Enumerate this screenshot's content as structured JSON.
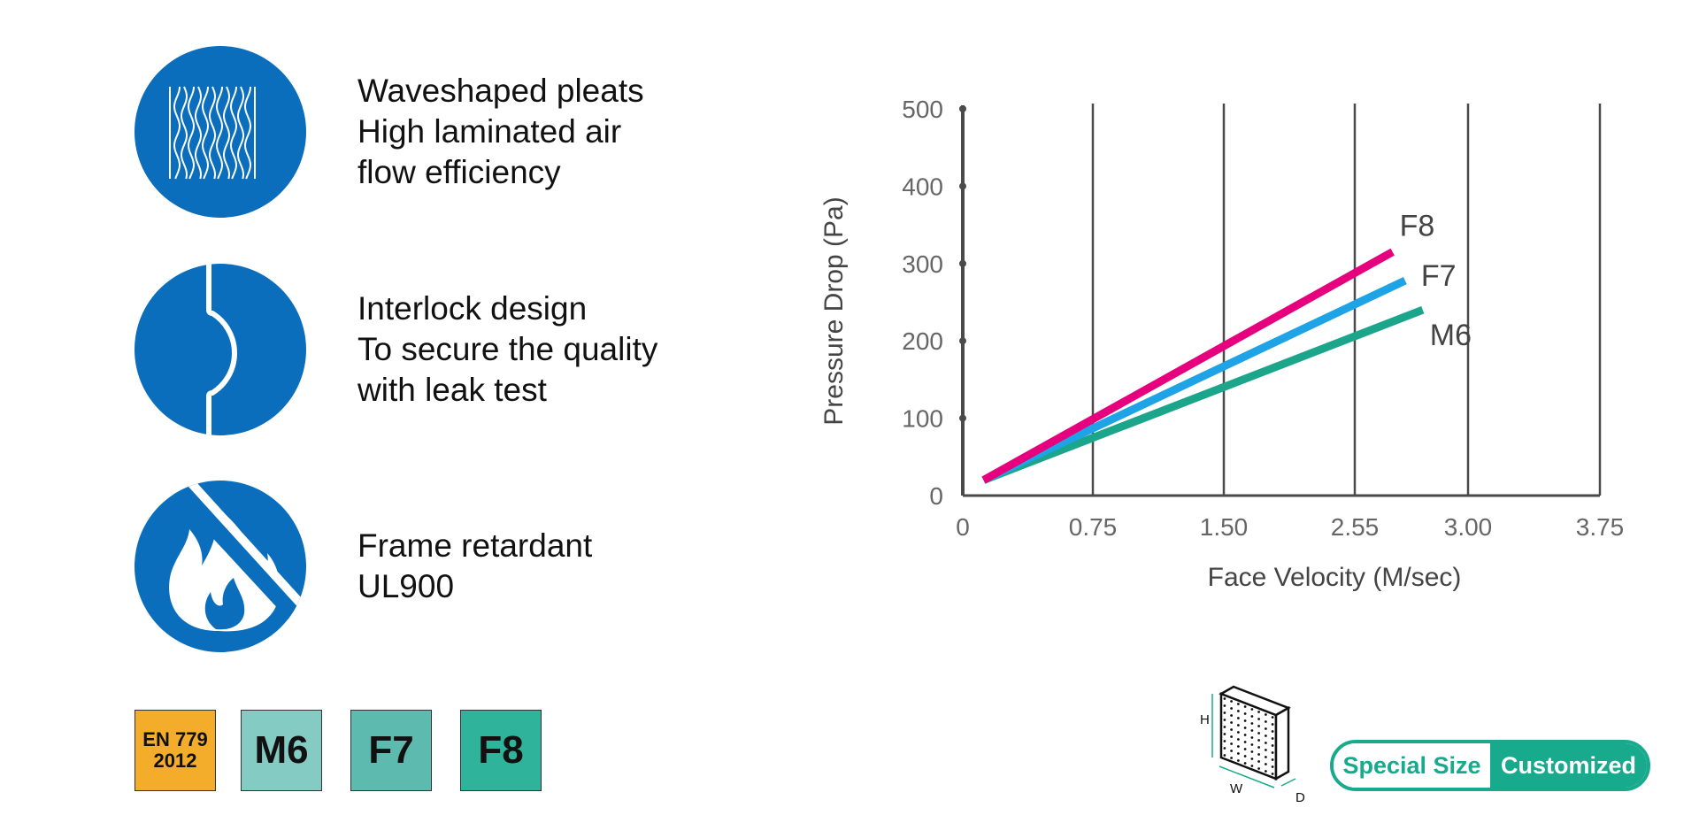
{
  "features": [
    {
      "icon": "wave-pleats-icon",
      "lines": [
        "Waveshaped pleats",
        "High laminated air",
        "flow efficiency"
      ]
    },
    {
      "icon": "interlock-icon",
      "lines": [
        "Interlock design",
        "To secure the quality",
        "with leak test"
      ]
    },
    {
      "icon": "no-fire-icon",
      "lines": [
        "Frame retardant",
        "UL900"
      ]
    }
  ],
  "badges": {
    "standard": [
      "EN 779",
      "2012"
    ],
    "grades": [
      "M6",
      "F7",
      "F8"
    ],
    "colors": {
      "standard": "#f3ad2b",
      "M6": "#84cbc4",
      "F7": "#5cbbae",
      "F8": "#2fb39b"
    }
  },
  "chart_data": {
    "type": "line",
    "xlabel": "Face Velocity (M/sec)",
    "ylabel": "Pressure Drop (Pa)",
    "x_ticks": [
      "0",
      "0.75",
      "1.50",
      "2.55",
      "3.00",
      "3.75"
    ],
    "y_ticks": [
      0,
      100,
      200,
      300,
      400,
      500
    ],
    "ylim": [
      0,
      500
    ],
    "grid": "vertical",
    "series": [
      {
        "name": "F8",
        "color": "#e6007e",
        "points": [
          [
            0.12,
            20
          ],
          [
            2.7,
            315
          ]
        ]
      },
      {
        "name": "F7",
        "color": "#1ea4e6",
        "points": [
          [
            0.12,
            20
          ],
          [
            2.75,
            278
          ]
        ]
      },
      {
        "name": "M6",
        "color": "#1ba58a",
        "points": [
          [
            0.12,
            20
          ],
          [
            2.82,
            240
          ]
        ]
      }
    ]
  },
  "dimensions": {
    "icon": "filter-dimension-icon",
    "h": "H",
    "w": "W",
    "d": "D"
  },
  "special_size": {
    "left": "Special Size",
    "right": "Customized",
    "color": "#18aa8c"
  }
}
